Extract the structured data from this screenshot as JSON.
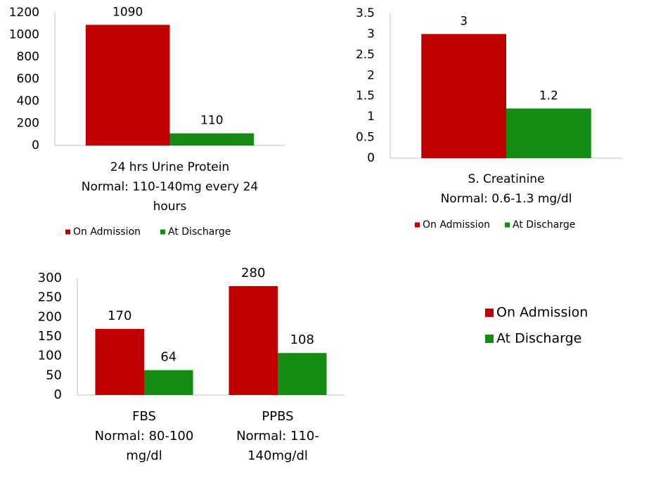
{
  "chart_data": [
    {
      "type": "bar",
      "categories": [
        "24 hrs Urine Protein\nNormal: 110-140mg every 24\nhours"
      ],
      "series": [
        {
          "name": "On Admission",
          "color": "#c00000",
          "values": [
            1090
          ]
        },
        {
          "name": "At Discharge",
          "color": "#148c14",
          "values": [
            110
          ]
        }
      ],
      "ylim": [
        0,
        1200
      ],
      "yticks": [
        0,
        200,
        400,
        600,
        800,
        1000,
        1200
      ],
      "legend": "bottom"
    },
    {
      "type": "bar",
      "categories": [
        "S. Creatinine\nNormal: 0.6-1.3 mg/dl"
      ],
      "series": [
        {
          "name": "On Admission",
          "color": "#c00000",
          "values": [
            3
          ]
        },
        {
          "name": "At Discharge",
          "color": "#148c14",
          "values": [
            1.2
          ]
        }
      ],
      "ylim": [
        0,
        3.5
      ],
      "yticks": [
        0,
        0.5,
        1,
        1.5,
        2,
        2.5,
        3,
        3.5
      ],
      "legend": "bottom"
    },
    {
      "type": "bar",
      "categories": [
        "FBS\nNormal: 80-100\nmg/dl",
        "PPBS\nNormal: 110-\n140mg/dl"
      ],
      "series": [
        {
          "name": "On Admission",
          "color": "#c00000",
          "values": [
            170,
            280
          ]
        },
        {
          "name": "At Discharge",
          "color": "#148c14",
          "values": [
            64,
            108
          ]
        }
      ],
      "ylim": [
        0,
        300
      ],
      "yticks": [
        0,
        50,
        100,
        150,
        200,
        250,
        300
      ],
      "legend": "right"
    }
  ]
}
